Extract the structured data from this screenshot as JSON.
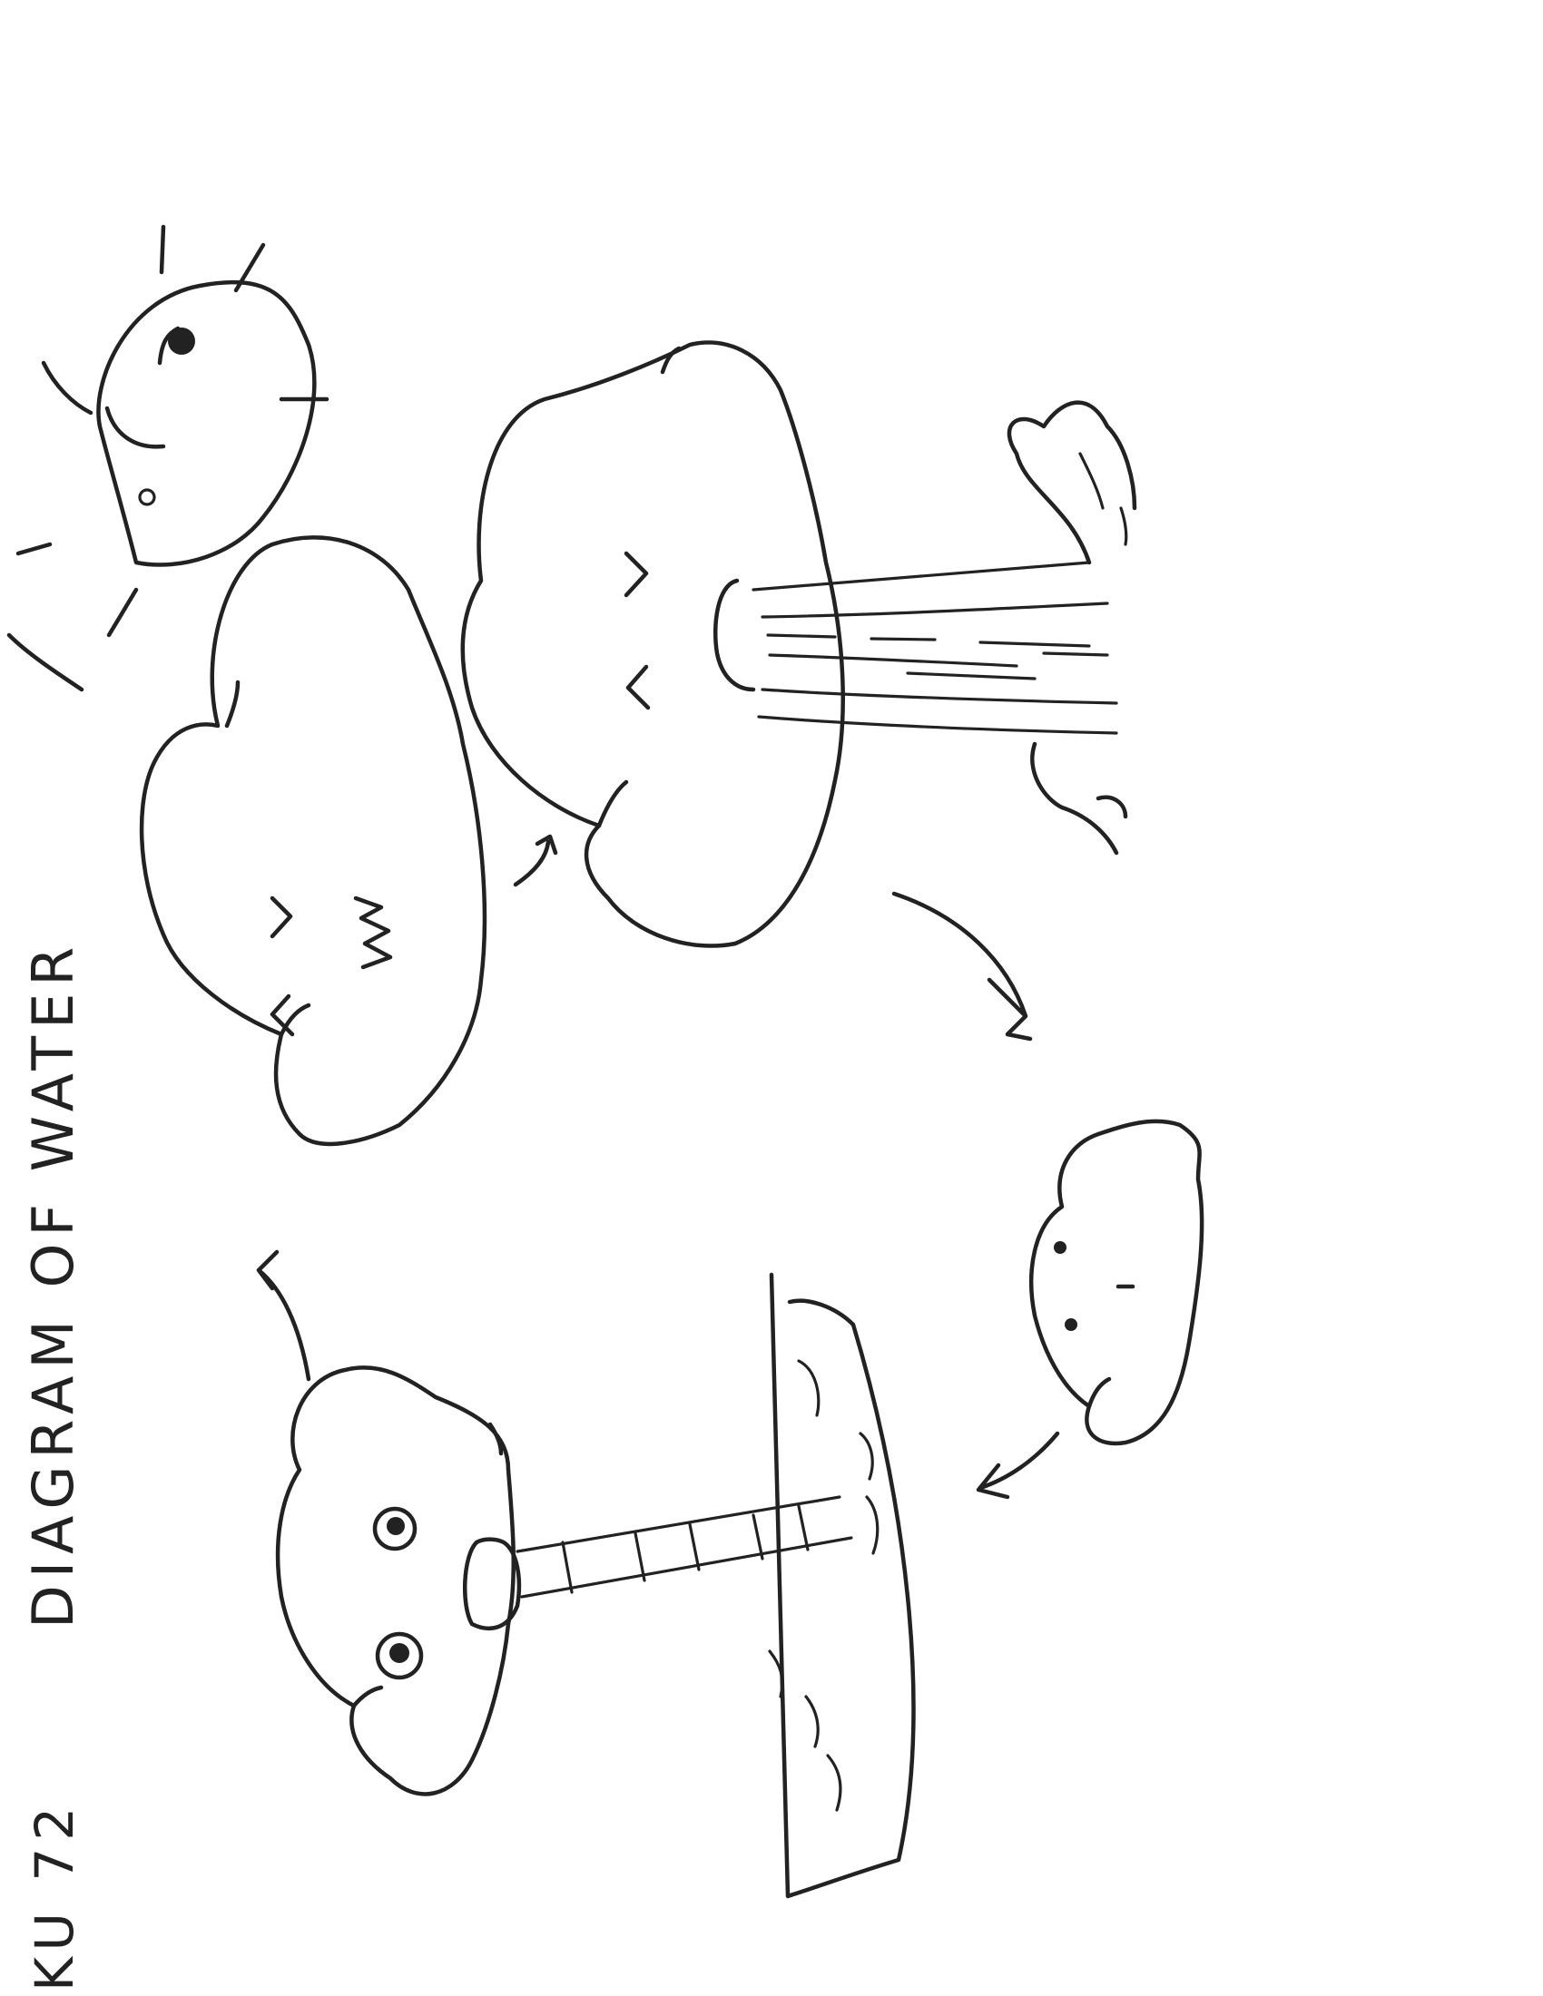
{
  "diagram": {
    "id_label": "KU 72",
    "title": "DIAGRAM OF WATER",
    "ink_color": "#222222",
    "paper_color": "#ffffff",
    "elements": [
      "smiling-sun",
      "squinting-cloud",
      "raining-cloud",
      "small-smiling-cloud",
      "cloud-drinking-through-straw",
      "body-of-water"
    ]
  }
}
